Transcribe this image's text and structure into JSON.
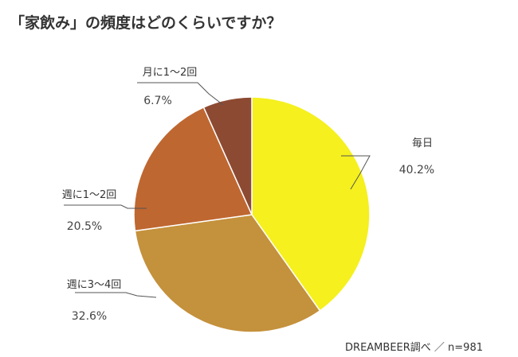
{
  "title": "「家飲み」の頻度はどのくらいですか？",
  "source": "DREAMBEER調べ ／ n=981",
  "chart_data": {
    "type": "pie",
    "title": "「家飲み」の頻度はどのくらいですか？",
    "unit": "%",
    "slices": [
      {
        "label": "毎日",
        "value": 40.2,
        "display": "40.2%",
        "color": "#f5f01e"
      },
      {
        "label": "週に3～4回",
        "value": 32.6,
        "display": "32.6%",
        "color": "#c4913c"
      },
      {
        "label": "週に1～2回",
        "value": 20.5,
        "display": "20.5%",
        "color": "#bf6731"
      },
      {
        "label": "月に1～2回",
        "value": 6.7,
        "display": "6.7%",
        "color": "#8d4a32"
      }
    ],
    "start": "12 o'clock",
    "direction": "clockwise"
  }
}
